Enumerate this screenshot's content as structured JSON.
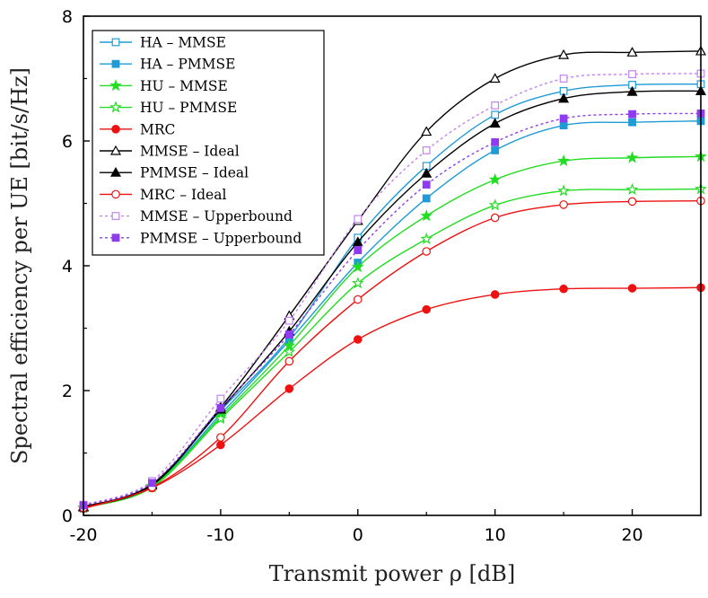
{
  "chart_data": {
    "type": "line",
    "xlabel": "Transmit power ρ [dB]",
    "ylabel": "Spectral efficiency per UE [bit/s/Hz]",
    "xlim": [
      -20,
      25
    ],
    "ylim": [
      0,
      8
    ],
    "xticks": [
      -20,
      -10,
      0,
      10,
      20
    ],
    "xtick_labels": [
      "-20",
      "-10",
      "0",
      "10",
      "20"
    ],
    "yticks": [
      0,
      2,
      4,
      6,
      8
    ],
    "ytick_labels": [
      "0",
      "2",
      "4",
      "6",
      "8"
    ],
    "grid": false,
    "legend_position": "top-left",
    "x": [
      -20,
      -15,
      -10,
      -5,
      0,
      5,
      10,
      15,
      20,
      25
    ],
    "series": [
      {
        "name": "HA – MMSE",
        "color": "#1f9bd7",
        "marker": "square-open",
        "dash": "solid",
        "values": [
          0.13,
          0.5,
          1.68,
          2.85,
          4.45,
          5.6,
          6.42,
          6.8,
          6.9,
          6.91
        ]
      },
      {
        "name": "HA – PMMSE",
        "color": "#1f9bd7",
        "marker": "square-filled",
        "dash": "solid",
        "values": [
          0.13,
          0.48,
          1.62,
          2.8,
          4.05,
          5.08,
          5.85,
          6.25,
          6.3,
          6.32
        ]
      },
      {
        "name": "HU – MMSE",
        "color": "#22dd22",
        "marker": "star-filled",
        "dash": "solid",
        "values": [
          0.12,
          0.47,
          1.58,
          2.72,
          3.98,
          4.8,
          5.38,
          5.68,
          5.73,
          5.75
        ]
      },
      {
        "name": "HU – PMMSE",
        "color": "#22dd22",
        "marker": "star-open",
        "dash": "solid",
        "values": [
          0.12,
          0.45,
          1.55,
          2.62,
          3.72,
          4.43,
          4.97,
          5.2,
          5.22,
          5.23
        ]
      },
      {
        "name": "MRC",
        "color": "#ee1111",
        "marker": "circle-filled",
        "dash": "solid",
        "values": [
          0.11,
          0.44,
          1.13,
          2.03,
          2.82,
          3.3,
          3.54,
          3.63,
          3.64,
          3.65
        ]
      },
      {
        "name": "MMSE – Ideal",
        "color": "#000000",
        "marker": "triangle-open",
        "dash": "solid",
        "values": [
          0.14,
          0.5,
          1.73,
          3.2,
          4.72,
          6.15,
          7.0,
          7.38,
          7.42,
          7.44
        ]
      },
      {
        "name": "PMMSE – Ideal",
        "color": "#000000",
        "marker": "triangle-filled",
        "dash": "solid",
        "values": [
          0.13,
          0.48,
          1.7,
          2.95,
          4.38,
          5.48,
          6.28,
          6.68,
          6.79,
          6.8
        ]
      },
      {
        "name": "MRC – Ideal",
        "color": "#ee1111",
        "marker": "circle-open",
        "dash": "solid",
        "values": [
          0.12,
          0.45,
          1.25,
          2.47,
          3.46,
          4.23,
          4.77,
          4.98,
          5.03,
          5.04
        ]
      },
      {
        "name": "MMSE – Upperbound",
        "color": "#c383f0",
        "marker": "square-open",
        "dash": "dot",
        "values": [
          0.17,
          0.55,
          1.87,
          3.12,
          4.75,
          5.85,
          6.57,
          7.0,
          7.07,
          7.08
        ]
      },
      {
        "name": "PMMSE – Upperbound",
        "color": "#8f3cf0",
        "marker": "square-filled",
        "dash": "dot",
        "values": [
          0.16,
          0.52,
          1.72,
          2.9,
          4.25,
          5.3,
          5.98,
          6.36,
          6.43,
          6.44
        ]
      }
    ]
  }
}
